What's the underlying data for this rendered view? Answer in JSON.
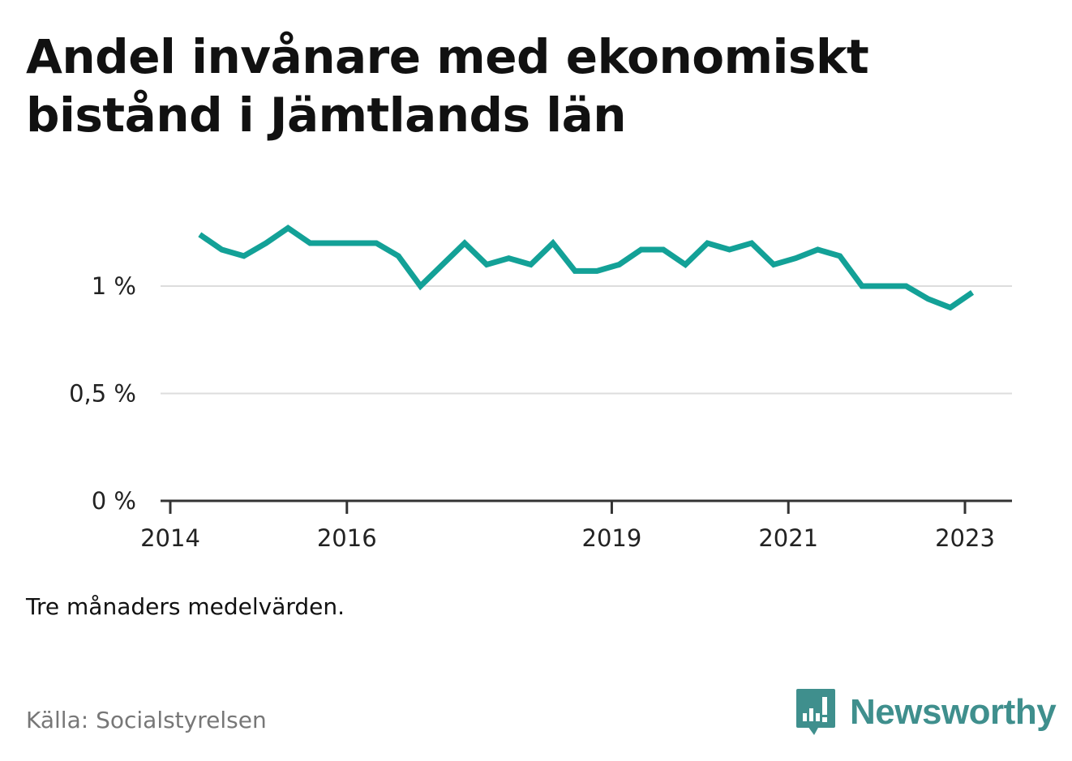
{
  "title": "Andel invånare med ekonomiskt bistånd i Jämtlands län",
  "note": "Tre månaders medelvärden.",
  "source": "Källa: Socialstyrelsen",
  "logo": {
    "text": "Newsworthy",
    "icon": "bar-chart-speech-bubble-icon",
    "color": "#3f8f8d"
  },
  "chart_data": {
    "type": "line",
    "title": "Andel invånare med ekonomiskt bistånd i Jämtlands län",
    "xlabel": "",
    "ylabel": "",
    "x_ticks": [
      "2014",
      "2016",
      "2019",
      "2021",
      "2023"
    ],
    "y_ticks": [
      {
        "value": 0,
        "label": "0 %"
      },
      {
        "value": 0.5,
        "label": "0,5 %"
      },
      {
        "value": 1,
        "label": "1 %"
      }
    ],
    "ylim": [
      0,
      1.3
    ],
    "xlim": [
      "2014-01",
      "2023-12"
    ],
    "grid": true,
    "line_color": "#13a197",
    "series": [
      {
        "x": [
          "2014-05",
          "2014-08",
          "2014-11",
          "2015-02",
          "2015-05",
          "2015-08",
          "2015-11",
          "2016-02",
          "2016-05",
          "2016-08",
          "2016-11",
          "2017-02",
          "2017-05",
          "2017-08",
          "2017-11",
          "2018-02",
          "2018-05",
          "2018-08",
          "2018-11",
          "2019-02",
          "2019-05",
          "2019-08",
          "2019-11",
          "2020-02",
          "2020-05",
          "2020-08",
          "2020-11",
          "2021-02",
          "2021-05",
          "2021-08",
          "2021-11",
          "2022-02",
          "2022-05",
          "2022-08",
          "2022-11",
          "2023-02"
        ],
        "values": [
          1.24,
          1.17,
          1.14,
          1.2,
          1.27,
          1.2,
          1.2,
          1.2,
          1.2,
          1.14,
          1.0,
          1.1,
          1.2,
          1.1,
          1.13,
          1.1,
          1.2,
          1.07,
          1.07,
          1.1,
          1.17,
          1.17,
          1.1,
          1.2,
          1.17,
          1.2,
          1.1,
          1.13,
          1.17,
          1.14,
          1.0,
          1.0,
          1.0,
          0.94,
          0.9,
          0.97
        ]
      }
    ]
  }
}
